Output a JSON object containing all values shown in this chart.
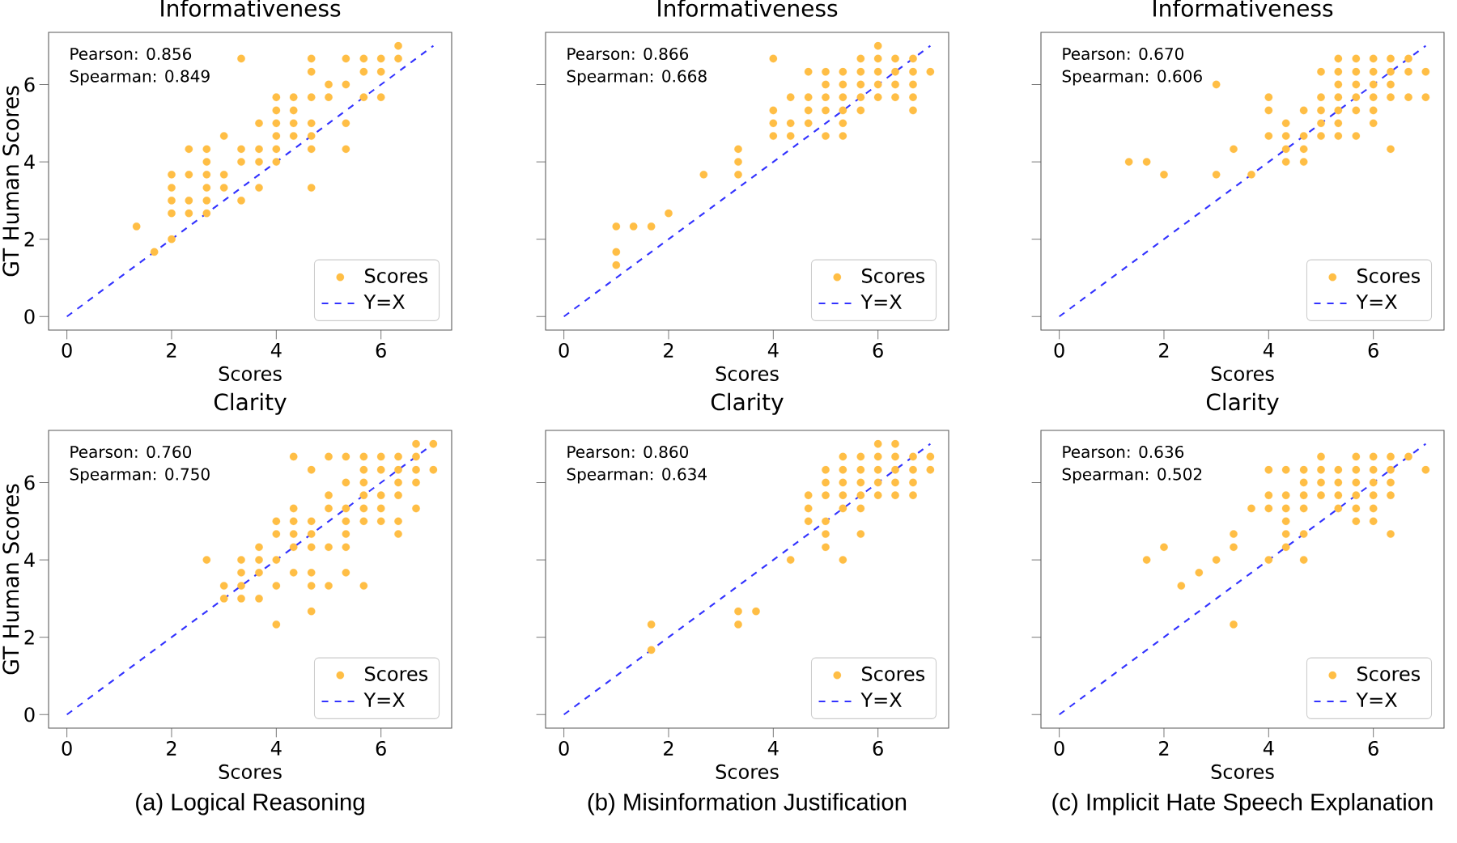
{
  "chart_data": [
    {
      "type": "scatter",
      "title": "Informativeness",
      "xlabel": "Scores",
      "ylabel": "GT Human Scores",
      "xlim": [
        -0.35,
        7.35
      ],
      "ylim": [
        -0.35,
        7.35
      ],
      "xticks": [
        0,
        2,
        4,
        6
      ],
      "yticks": [
        0,
        2,
        4,
        6
      ],
      "legend": "bottom right",
      "marker": "circle",
      "annotations": [
        "Pearson: 0.856",
        "Spearman: 0.849"
      ],
      "series": [
        {
          "name": "Scores",
          "color": "#ffbe45",
          "x": [
            6.33,
            3.33,
            4.67,
            5.33,
            5.67,
            6,
            6.33,
            4.67,
            5.67,
            6,
            5,
            5.33,
            4,
            4.33,
            4.67,
            5,
            5.67,
            6,
            4,
            4.33,
            3.67,
            4,
            4.33,
            4.67,
            5.33,
            3,
            4,
            4.33,
            4.67,
            2.33,
            2.67,
            3.33,
            3.67,
            4,
            4.67,
            5.33,
            2.67,
            3.33,
            3.67,
            4,
            2,
            2.33,
            2.67,
            3,
            2,
            2.67,
            3,
            3.67,
            4.67,
            2,
            2.33,
            2.67,
            3.33,
            2,
            2.33,
            2.67,
            1.33,
            2,
            1.67
          ],
          "values": [
            7,
            6.67,
            6.67,
            6.67,
            6.67,
            6.67,
            6.67,
            6.33,
            6.33,
            6.33,
            6,
            6,
            5.67,
            5.67,
            5.67,
            5.67,
            5.67,
            5.67,
            5.33,
            5.33,
            5,
            5,
            5,
            5,
            5,
            4.67,
            4.67,
            4.67,
            4.67,
            4.33,
            4.33,
            4.33,
            4.33,
            4.33,
            4.33,
            4.33,
            4,
            4,
            4,
            4,
            3.67,
            3.67,
            3.67,
            3.67,
            3.33,
            3.33,
            3.33,
            3.33,
            3.33,
            3,
            3,
            3,
            3,
            2.67,
            2.67,
            2.67,
            2.33,
            2,
            1.67
          ]
        },
        {
          "name": "Y=X",
          "type": "line",
          "color": "#3333ff",
          "line_style": "dashed",
          "marker": "none",
          "x": [
            0,
            7
          ],
          "values": [
            0,
            7
          ]
        }
      ]
    },
    {
      "type": "scatter",
      "title": "Informativeness",
      "xlabel": "Scores",
      "xlim": [
        -0.35,
        7.35
      ],
      "ylim": [
        -0.35,
        7.35
      ],
      "xticks": [
        0,
        2,
        4,
        6
      ],
      "yticks": [
        0,
        2,
        4,
        6
      ],
      "tick_labels": "x",
      "legend": "bottom right",
      "marker": "circle",
      "annotations": [
        "Pearson: 0.866",
        "Spearman: 0.668"
      ],
      "series": [
        {
          "name": "Scores",
          "color": "#ffbe45",
          "x": [
            6,
            4,
            5.67,
            6,
            6.33,
            6.67,
            4.67,
            5,
            5.33,
            5.67,
            6,
            6.33,
            6.67,
            7,
            5,
            5.33,
            5.67,
            6,
            6.33,
            6.67,
            4.33,
            4.67,
            5,
            5.33,
            5.67,
            6,
            6.33,
            6.67,
            4,
            4.67,
            5,
            5.33,
            5.67,
            6.67,
            4,
            4.33,
            4.67,
            5.33,
            4,
            4.33,
            5,
            5.33,
            3.33,
            3.33,
            2.67,
            3.33,
            2,
            1,
            1.33,
            1.67,
            1,
            1
          ],
          "values": [
            7,
            6.67,
            6.67,
            6.67,
            6.67,
            6.67,
            6.33,
            6.33,
            6.33,
            6.33,
            6.33,
            6.33,
            6.33,
            6.33,
            6,
            6,
            6,
            6,
            6,
            6,
            5.67,
            5.67,
            5.67,
            5.67,
            5.67,
            5.67,
            5.67,
            5.67,
            5.33,
            5.33,
            5.33,
            5.33,
            5.33,
            5.33,
            5,
            5,
            5,
            5,
            4.67,
            4.67,
            4.67,
            4.67,
            4.33,
            4,
            3.67,
            3.67,
            2.67,
            2.33,
            2.33,
            2.33,
            1.67,
            1.33
          ]
        },
        {
          "name": "Y=X",
          "type": "line",
          "color": "#3333ff",
          "line_style": "dashed",
          "marker": "none",
          "x": [
            0,
            7
          ],
          "values": [
            0,
            7
          ]
        }
      ]
    },
    {
      "type": "scatter",
      "title": "Informativeness",
      "xlabel": "Scores",
      "xlim": [
        -0.35,
        7.35
      ],
      "ylim": [
        -0.35,
        7.35
      ],
      "xticks": [
        0,
        2,
        4,
        6
      ],
      "yticks": [
        0,
        2,
        4,
        6
      ],
      "tick_labels": "x",
      "legend": "bottom right",
      "marker": "circle",
      "annotations": [
        "Pearson: 0.670",
        "Spearman: 0.606"
      ],
      "series": [
        {
          "name": "Scores",
          "color": "#ffbe45",
          "x": [
            5.33,
            5.67,
            6,
            6.33,
            6.67,
            5,
            5.33,
            5.67,
            6,
            6.33,
            6.67,
            7,
            3,
            5.33,
            5.67,
            6,
            6.33,
            4,
            5,
            5.33,
            5.67,
            6,
            6.33,
            6.67,
            7,
            4,
            4.67,
            5,
            5.33,
            5.67,
            6,
            4.33,
            5,
            5.33,
            6,
            4,
            4.33,
            4.67,
            5,
            5.33,
            5.67,
            3.33,
            4.33,
            4.67,
            6.33,
            1.33,
            1.67,
            4.33,
            4.67,
            2,
            3,
            3.67
          ],
          "values": [
            6.67,
            6.67,
            6.67,
            6.67,
            6.67,
            6.33,
            6.33,
            6.33,
            6.33,
            6.33,
            6.33,
            6.33,
            6,
            6,
            6,
            6,
            6,
            5.67,
            5.67,
            5.67,
            5.67,
            5.67,
            5.67,
            5.67,
            5.67,
            5.33,
            5.33,
            5.33,
            5.33,
            5.33,
            5.33,
            5,
            5,
            5,
            5,
            4.67,
            4.67,
            4.67,
            4.67,
            4.67,
            4.67,
            4.33,
            4.33,
            4.33,
            4.33,
            4,
            4,
            4,
            4,
            3.67,
            3.67,
            3.67
          ]
        },
        {
          "name": "Y=X",
          "type": "line",
          "color": "#3333ff",
          "line_style": "dashed",
          "marker": "none",
          "x": [
            0,
            7
          ],
          "values": [
            0,
            7
          ]
        }
      ]
    },
    {
      "type": "scatter",
      "title": "Clarity",
      "xlabel": "Scores",
      "ylabel": "GT Human Scores",
      "xlim": [
        -0.35,
        7.35
      ],
      "ylim": [
        -0.35,
        7.35
      ],
      "xticks": [
        0,
        2,
        4,
        6
      ],
      "yticks": [
        0,
        2,
        4,
        6
      ],
      "legend": "bottom right",
      "marker": "circle",
      "annotations": [
        "Pearson: 0.760",
        "Spearman: 0.750",
        "(a) Logical Reasoning"
      ],
      "series": [
        {
          "name": "Scores",
          "color": "#ffbe45",
          "x": [
            6.67,
            7,
            4.33,
            5,
            5.33,
            5.67,
            6,
            6.33,
            6.67,
            4.67,
            5.67,
            6,
            6.33,
            6.67,
            7,
            5.33,
            5.67,
            6.33,
            6.67,
            5,
            5.67,
            6,
            6.33,
            4.33,
            5,
            5.33,
            5.67,
            6,
            6.67,
            4,
            4.33,
            4.67,
            5.33,
            5.67,
            6,
            6.33,
            4,
            4.33,
            4.67,
            5.33,
            6.33,
            3.67,
            4.33,
            4.67,
            5,
            5.33,
            2.67,
            3.33,
            3.67,
            4,
            3.33,
            3.67,
            4.33,
            4.67,
            5.33,
            3,
            3.33,
            4,
            4.67,
            5,
            5.67,
            3,
            3.33,
            3.67,
            4.67,
            4
          ],
          "values": [
            7,
            7,
            6.67,
            6.67,
            6.67,
            6.67,
            6.67,
            6.67,
            6.67,
            6.33,
            6.33,
            6.33,
            6.33,
            6.33,
            6.33,
            6,
            6,
            6,
            6,
            5.67,
            5.67,
            5.67,
            5.67,
            5.33,
            5.33,
            5.33,
            5.33,
            5.33,
            5.33,
            5,
            5,
            5,
            5,
            5,
            5,
            5,
            4.67,
            4.67,
            4.67,
            4.67,
            4.67,
            4.33,
            4.33,
            4.33,
            4.33,
            4.33,
            4,
            4,
            4,
            4,
            3.67,
            3.67,
            3.67,
            3.67,
            3.67,
            3.33,
            3.33,
            3.33,
            3.33,
            3.33,
            3.33,
            3,
            3,
            3,
            2.67,
            2.33
          ]
        },
        {
          "name": "Y=X",
          "type": "line",
          "color": "#3333ff",
          "line_style": "dashed",
          "marker": "none",
          "x": [
            0,
            7
          ],
          "values": [
            0,
            7
          ]
        }
      ]
    },
    {
      "type": "scatter",
      "title": "Clarity",
      "xlabel": "Scores",
      "xlim": [
        -0.35,
        7.35
      ],
      "ylim": [
        -0.35,
        7.35
      ],
      "xticks": [
        0,
        2,
        4,
        6
      ],
      "yticks": [
        0,
        2,
        4,
        6
      ],
      "tick_labels": "x",
      "legend": "bottom right",
      "marker": "circle",
      "annotations": [
        "Pearson: 0.860",
        "Spearman: 0.634",
        "(b) Misinformation Justification"
      ],
      "series": [
        {
          "name": "Scores",
          "color": "#ffbe45",
          "x": [
            6,
            6.33,
            5.33,
            5.67,
            6,
            6.33,
            6.67,
            7,
            5,
            5.33,
            5.67,
            6,
            6.33,
            6.67,
            7,
            5,
            5.33,
            5.67,
            6,
            6.33,
            6.67,
            4.67,
            5,
            5.33,
            5.67,
            6,
            6.33,
            6.67,
            4.67,
            5.33,
            5.67,
            4.67,
            5,
            5,
            5.67,
            5,
            4.33,
            5.33,
            3.33,
            3.67,
            1.67,
            3.33,
            1.67
          ],
          "values": [
            7,
            7,
            6.67,
            6.67,
            6.67,
            6.67,
            6.67,
            6.67,
            6.33,
            6.33,
            6.33,
            6.33,
            6.33,
            6.33,
            6.33,
            6,
            6,
            6,
            6,
            6,
            6,
            5.67,
            5.67,
            5.67,
            5.67,
            5.67,
            5.67,
            5.67,
            5.33,
            5.33,
            5.33,
            5,
            5,
            4.67,
            4.67,
            4.33,
            4,
            4,
            2.67,
            2.67,
            2.33,
            2.33,
            1.67
          ]
        },
        {
          "name": "Y=X",
          "type": "line",
          "color": "#3333ff",
          "line_style": "dashed",
          "marker": "none",
          "x": [
            0,
            7
          ],
          "values": [
            0,
            7
          ]
        }
      ]
    },
    {
      "type": "scatter",
      "title": "Clarity",
      "xlabel": "Scores",
      "xlim": [
        -0.35,
        7.35
      ],
      "ylim": [
        -0.35,
        7.35
      ],
      "xticks": [
        0,
        2,
        4,
        6
      ],
      "yticks": [
        0,
        2,
        4,
        6
      ],
      "tick_labels": "x",
      "legend": "bottom right",
      "marker": "circle",
      "annotations": [
        "Pearson: 0.636",
        "Spearman: 0.502",
        "(c) Implicit Hate Speech Explanation"
      ],
      "series": [
        {
          "name": "Scores",
          "color": "#ffbe45",
          "x": [
            5,
            5.67,
            6,
            6.33,
            6.67,
            4,
            4.33,
            4.67,
            5,
            5.33,
            5.67,
            6,
            6.33,
            7,
            4.67,
            5,
            5.33,
            5.67,
            6,
            6.33,
            4,
            4.33,
            4.67,
            5,
            5.33,
            5.67,
            6,
            6.33,
            3.67,
            4,
            4.33,
            4.67,
            5.33,
            5.67,
            6,
            4.33,
            5.67,
            6,
            3.33,
            4.33,
            4.67,
            6.33,
            2,
            3.33,
            4.33,
            1.67,
            3,
            4,
            4.67,
            2.67,
            2.33,
            3.33
          ],
          "values": [
            6.67,
            6.67,
            6.67,
            6.67,
            6.67,
            6.33,
            6.33,
            6.33,
            6.33,
            6.33,
            6.33,
            6.33,
            6.33,
            6.33,
            6,
            6,
            6,
            6,
            6,
            6,
            5.67,
            5.67,
            5.67,
            5.67,
            5.67,
            5.67,
            5.67,
            5.67,
            5.33,
            5.33,
            5.33,
            5.33,
            5.33,
            5.33,
            5.33,
            5,
            5,
            5,
            4.67,
            4.67,
            4.67,
            4.67,
            4.33,
            4.33,
            4.33,
            4,
            4,
            4,
            4,
            3.67,
            3.33,
            2.33
          ]
        },
        {
          "name": "Y=X",
          "type": "line",
          "color": "#3333ff",
          "line_style": "dashed",
          "marker": "none",
          "x": [
            0,
            7
          ],
          "values": [
            0,
            7
          ]
        }
      ]
    }
  ]
}
